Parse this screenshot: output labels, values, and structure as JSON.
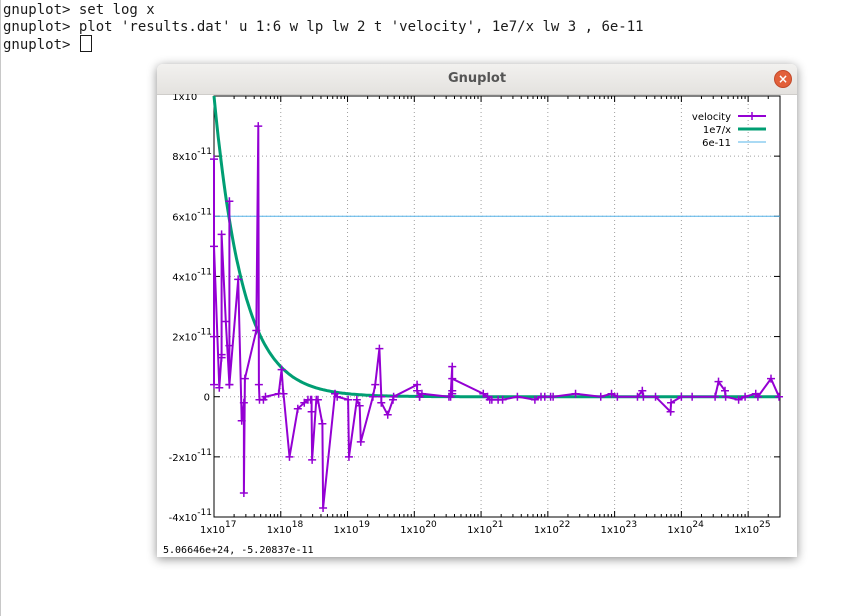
{
  "terminal": {
    "lines": [
      "gnuplot> set log x",
      "gnuplot> plot 'results.dat' u 1:6 w lp lw 2 t 'velocity', 1e7/x lw 3 , 6e-11",
      "gnuplot> "
    ]
  },
  "window": {
    "title": "Gnuplot",
    "close_label": "×"
  },
  "status_bar": "5.06646e+24, -5.20837e-11",
  "colors": {
    "velocity": "#9400d3",
    "curve": "#009e73",
    "constant": "#56b4e9",
    "close_button": "#e2603a"
  },
  "chart_data": {
    "type": "line",
    "x_scale": "log",
    "xlim": [
      1e+17,
      3e+25
    ],
    "ylim": [
      -4e-11,
      1e-10
    ],
    "grid": true,
    "legend_position": "top-right",
    "x_ticks": [
      {
        "mantissa": "1x10",
        "exponent": "17"
      },
      {
        "mantissa": "1x10",
        "exponent": "18"
      },
      {
        "mantissa": "1x10",
        "exponent": "19"
      },
      {
        "mantissa": "1x10",
        "exponent": "20"
      },
      {
        "mantissa": "1x10",
        "exponent": "21"
      },
      {
        "mantissa": "1x10",
        "exponent": "22"
      },
      {
        "mantissa": "1x10",
        "exponent": "23"
      },
      {
        "mantissa": "1x10",
        "exponent": "24"
      },
      {
        "mantissa": "1x10",
        "exponent": "25"
      }
    ],
    "y_ticks": [
      {
        "value": 1e-10,
        "mantissa": "1x10",
        "exponent": "-10"
      },
      {
        "value": 8e-11,
        "mantissa": "8x10",
        "exponent": "-11"
      },
      {
        "value": 6e-11,
        "mantissa": "6x10",
        "exponent": "-11"
      },
      {
        "value": 4e-11,
        "mantissa": "4x10",
        "exponent": "-11"
      },
      {
        "value": 2e-11,
        "mantissa": "2x10",
        "exponent": "-11"
      },
      {
        "value": 0,
        "mantissa": "0",
        "exponent": ""
      },
      {
        "value": -2e-11,
        "mantissa": "-2x10",
        "exponent": "-11"
      },
      {
        "value": -4e-11,
        "mantissa": "-4x10",
        "exponent": "-11"
      }
    ],
    "series": [
      {
        "name": "velocity",
        "style": "linespoints",
        "x": [
          1e+17,
          1e+17,
          1e+17,
          1e+17,
          1.2e+17,
          1.3e+17,
          1.3e+17,
          1.3e+17,
          1.5e+17,
          1.7e+17,
          1.7e+17,
          1.7e+17,
          1.7e+17,
          2.3e+17,
          2.6e+17,
          2.8e+17,
          2.8e+17,
          2.9e+17,
          4.3e+17,
          4.6e+17,
          4.7e+17,
          4.8e+17,
          5.5e+17,
          5.9e+17,
          9.3e+17,
          1.03e+18,
          1.09e+18,
          1.1e+18,
          1.35e+18,
          1.8e+18,
          2.25e+18,
          2.55e+18,
          2.8e+18,
          2.9e+18,
          2.9e+18,
          2.95e+18,
          3.4e+18,
          3.6e+18,
          4.2e+18,
          4.3e+18,
          6.5e+18,
          7e+18,
          1.02e+19,
          1.05e+19,
          1.38e+19,
          1.52e+19,
          1.58e+19,
          2.4e+19,
          2.6e+19,
          3e+19,
          3.2e+19,
          3.2e+19,
          4e+19,
          4.8e+19,
          4.9e+19,
          1.1e+20,
          1.1e+20,
          1.2e+20,
          1.2e+20,
          1.3e+20,
          3.3e+20,
          3.5e+20,
          3.7e+20,
          3.7e+20,
          3.7e+20,
          3.7e+20,
          1.08e+21,
          1.25e+21,
          1.35e+21,
          1.45e+21,
          1.8e+21,
          2.1e+21,
          3.5e+21,
          6.4e+21,
          7.9e+21,
          9e+21,
          1.1e+22,
          1.2e+22,
          2.6e+22,
          6.2e+22,
          9e+22,
          1.1e+23,
          2.2e+23,
          2.6e+23,
          2.7e+23,
          4.1e+23,
          6.9e+23,
          7e+23,
          1e+24,
          1.45e+24,
          3.2e+24,
          3.6e+24,
          4.5e+24,
          4.6e+24,
          7.2e+24,
          9e+24,
          1.3e+25,
          1.4e+25,
          2.2e+25,
          2.9e+25
        ],
        "y": [
          4e-12,
          2e-11,
          7.9e-11,
          5e-11,
          3e-12,
          1.4e-11,
          1.3e-11,
          5.4e-11,
          2.5e-11,
          4e-12,
          1.7e-11,
          6.5e-11,
          4e-12,
          3.9e-11,
          -8e-12,
          -2e-12,
          -3.2e-11,
          6e-12,
          2.2e-11,
          9e-11,
          4e-12,
          -1e-12,
          -1e-12,
          0,
          1e-12,
          9e-12,
          1e-12,
          1e-12,
          -2e-11,
          -4e-12,
          -2e-12,
          -1e-12,
          -1e-12,
          -1e-12,
          -5e-12,
          -2.1e-11,
          -1e-12,
          -1e-12,
          -9e-12,
          -3.7e-11,
          1e-12,
          0,
          -1e-12,
          -2e-11,
          -1e-12,
          -3e-12,
          -1.5e-11,
          0,
          4e-12,
          1.6e-11,
          0,
          -2e-12,
          -6e-12,
          -1e-12,
          0,
          4e-12,
          2e-12,
          0,
          0,
          1e-12,
          0,
          0,
          1e-11,
          2e-12,
          1e-12,
          6e-12,
          1e-12,
          0,
          -1e-12,
          -1e-12,
          -1e-12,
          -1e-12,
          0,
          -1e-12,
          0,
          0,
          0,
          0,
          1e-12,
          0,
          1e-12,
          0,
          0,
          2e-12,
          0,
          0,
          -5e-12,
          -2e-12,
          0,
          0,
          0,
          5e-12,
          2e-12,
          0,
          -1e-12,
          0,
          1e-12,
          0,
          6e-12,
          0
        ]
      },
      {
        "name": "1e7/x",
        "style": "lines",
        "function": "1e7/x"
      },
      {
        "name": "6e-11",
        "style": "lines",
        "function": "6e-11"
      }
    ]
  }
}
